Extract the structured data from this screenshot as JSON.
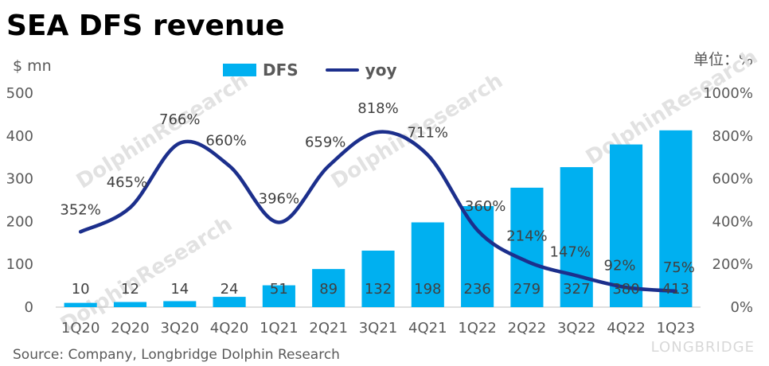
{
  "title": "SEA DFS revenue",
  "left_axis_label": "$ mn",
  "right_axis_label": "单位：%",
  "source": "Source: Company, Longbridge Dolphin Research",
  "watermark": {
    "brand": "DolphinResearch",
    "footer": "LONGBRIDGE"
  },
  "legend": {
    "bar_label": "DFS",
    "line_label": "yoy"
  },
  "colors": {
    "bar": "#00b0f0",
    "line": "#1c2f8c",
    "text": "#595959"
  },
  "chart_data": {
    "type": "bar",
    "categories": [
      "1Q20",
      "2Q20",
      "3Q20",
      "4Q20",
      "1Q21",
      "2Q21",
      "3Q21",
      "4Q21",
      "1Q22",
      "2Q22",
      "3Q22",
      "4Q22",
      "1Q23"
    ],
    "series": [
      {
        "name": "DFS",
        "type": "bar",
        "axis": "left",
        "values": [
          10,
          12,
          14,
          24,
          51,
          89,
          132,
          198,
          236,
          279,
          327,
          380,
          413
        ]
      },
      {
        "name": "yoy",
        "type": "line",
        "axis": "right",
        "values": [
          352,
          465,
          766,
          660,
          396,
          659,
          818,
          711,
          360,
          214,
          147,
          92,
          75
        ]
      }
    ],
    "bar_labels": [
      "10",
      "12",
      "14",
      "24",
      "51",
      "89",
      "132",
      "198",
      "236",
      "279",
      "327",
      "380",
      "413"
    ],
    "line_labels": [
      "352%",
      "465%",
      "766%",
      "660%",
      "396%",
      "659%",
      "818%",
      "711%",
      "360%",
      "214%",
      "147%",
      "92%",
      "75%"
    ],
    "left_ticks": [
      "0",
      "100",
      "200",
      "300",
      "400",
      "500"
    ],
    "right_ticks": [
      "0%",
      "200%",
      "400%",
      "600%",
      "800%",
      "1000%"
    ],
    "ylim": [
      0,
      500
    ],
    "y2lim": [
      0,
      1000
    ],
    "grid": false
  }
}
